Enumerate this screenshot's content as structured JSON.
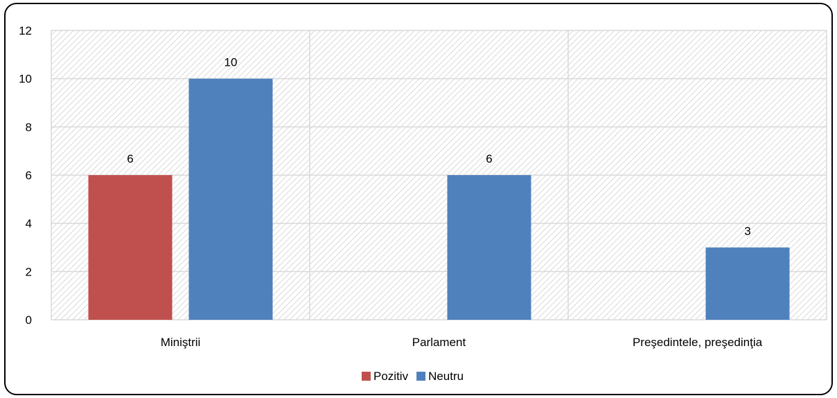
{
  "chart_data": {
    "type": "bar",
    "categories": [
      "Miniştrii",
      "Parlament",
      "Preşedintele, preşedinţia"
    ],
    "series": [
      {
        "name": "Pozitiv",
        "color": "#c0504d",
        "values": [
          6,
          null,
          null
        ]
      },
      {
        "name": "Neutru",
        "color": "#4f81bd",
        "values": [
          10,
          6,
          3
        ]
      }
    ],
    "ylim": [
      0,
      12
    ],
    "yticks": [
      0,
      2,
      4,
      6,
      8,
      10,
      12
    ],
    "grid": true,
    "legend_position": "bottom"
  }
}
